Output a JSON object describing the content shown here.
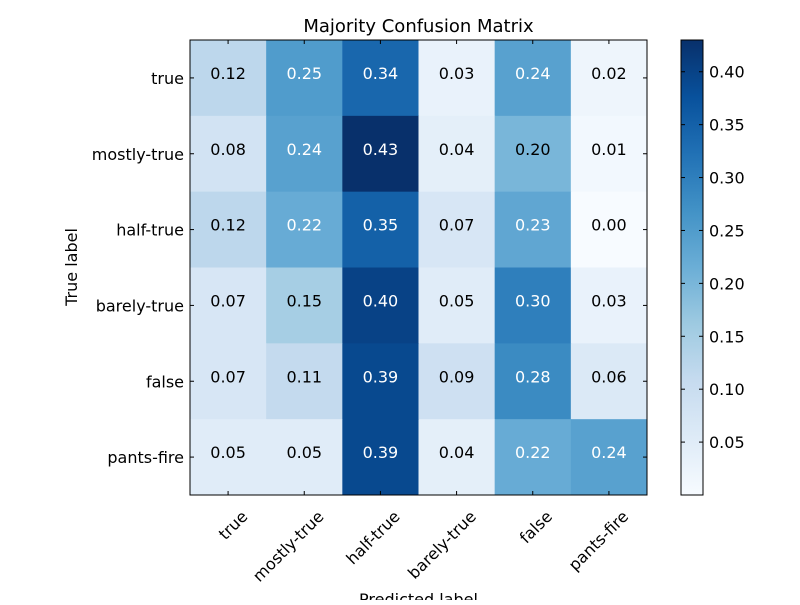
{
  "chart_data": {
    "type": "heatmap",
    "title": "Majority Confusion Matrix",
    "xlabel": "Predicted label",
    "ylabel": "True label",
    "rows": [
      "true",
      "mostly-true",
      "half-true",
      "barely-true",
      "false",
      "pants-fire"
    ],
    "columns": [
      "true",
      "mostly-true",
      "half-true",
      "barely-true",
      "false",
      "pants-fire"
    ],
    "values": [
      [
        0.12,
        0.25,
        0.34,
        0.03,
        0.24,
        0.02
      ],
      [
        0.08,
        0.24,
        0.43,
        0.04,
        0.2,
        0.01
      ],
      [
        0.12,
        0.22,
        0.35,
        0.07,
        0.23,
        0.0
      ],
      [
        0.07,
        0.15,
        0.4,
        0.05,
        0.3,
        0.03
      ],
      [
        0.07,
        0.11,
        0.39,
        0.09,
        0.28,
        0.06
      ],
      [
        0.05,
        0.05,
        0.39,
        0.04,
        0.22,
        0.24
      ]
    ],
    "value_labels": [
      [
        "0.12",
        "0.25",
        "0.34",
        "0.03",
        "0.24",
        "0.02"
      ],
      [
        "0.08",
        "0.24",
        "0.43",
        "0.04",
        "0.20",
        "0.01"
      ],
      [
        "0.12",
        "0.22",
        "0.35",
        "0.07",
        "0.23",
        "0.00"
      ],
      [
        "0.07",
        "0.15",
        "0.40",
        "0.05",
        "0.30",
        "0.03"
      ],
      [
        "0.07",
        "0.11",
        "0.39",
        "0.09",
        "0.28",
        "0.06"
      ],
      [
        "0.05",
        "0.05",
        "0.39",
        "0.04",
        "0.22",
        "0.24"
      ]
    ],
    "colormap": "Blues",
    "colorbar": {
      "range": [
        0.0,
        0.43
      ],
      "ticks": [
        0.05,
        0.1,
        0.15,
        0.2,
        0.25,
        0.3,
        0.35,
        0.4
      ],
      "tick_labels": [
        "0.05",
        "0.10",
        "0.15",
        "0.20",
        "0.25",
        "0.30",
        "0.35",
        "0.40"
      ]
    },
    "grid": false,
    "legend": "colorbar-right"
  }
}
